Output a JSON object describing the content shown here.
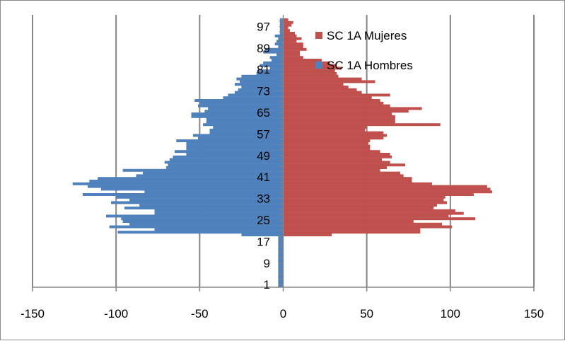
{
  "chart_data": {
    "type": "bar",
    "orientation": "horizontal",
    "layout": "population-pyramid",
    "x_ticks": [
      -150,
      -100,
      -50,
      0,
      50,
      100,
      150
    ],
    "xlim": [
      -150,
      150
    ],
    "ylim": [
      0,
      100
    ],
    "y_tick_labels": [
      "1",
      "9",
      "17",
      "25",
      "33",
      "41",
      "49",
      "57",
      "65",
      "73",
      "81",
      "89",
      "97"
    ],
    "grid": {
      "vertical": true,
      "horizontal": false
    },
    "legend_position": "top-right",
    "series": [
      {
        "name": "SC 1A Mujeres",
        "color": "#c0504d",
        "ages": [
          0,
          1,
          2,
          3,
          4,
          5,
          6,
          7,
          8,
          9,
          10,
          11,
          12,
          13,
          14,
          15,
          16,
          17,
          18,
          19,
          20,
          21,
          22,
          23,
          24,
          25,
          26,
          27,
          28,
          29,
          30,
          31,
          32,
          33,
          34,
          35,
          36,
          37,
          38,
          39,
          40,
          41,
          42,
          43,
          44,
          45,
          46,
          47,
          48,
          49,
          50,
          51,
          52,
          53,
          54,
          55,
          56,
          57,
          58,
          59,
          60,
          61,
          62,
          63,
          64,
          65,
          66,
          67,
          68,
          69,
          70,
          71,
          72,
          73,
          74,
          75,
          76,
          77,
          78,
          79,
          80,
          81,
          82,
          83,
          84,
          85,
          86,
          87,
          88,
          89,
          90,
          91,
          92,
          93,
          94,
          95,
          96,
          97,
          98,
          99
        ],
        "values": [
          0,
          0,
          0,
          0,
          0,
          0,
          0,
          0,
          0,
          0,
          0,
          0,
          0,
          0,
          0,
          0,
          0,
          0,
          0,
          29,
          82,
          82,
          101,
          95,
          78,
          115,
          99,
          108,
          103,
          90,
          92,
          98,
          96,
          97,
          114,
          125,
          124,
          122,
          89,
          77,
          77,
          72,
          70,
          58,
          62,
          73,
          64,
          59,
          65,
          64,
          58,
          52,
          52,
          51,
          52,
          60,
          62,
          60,
          49,
          50,
          94,
          67,
          67,
          67,
          65,
          75,
          83,
          64,
          60,
          58,
          53,
          64,
          47,
          44,
          39,
          36,
          55,
          47,
          33,
          32,
          31,
          35,
          32,
          28,
          23,
          12,
          10,
          10,
          14,
          12,
          12,
          8,
          11,
          8,
          7,
          4,
          3,
          5,
          6,
          3
        ]
      },
      {
        "name": "SC 1A Hombres",
        "color": "#4f81bd",
        "ages": [
          0,
          1,
          2,
          3,
          4,
          5,
          6,
          7,
          8,
          9,
          10,
          11,
          12,
          13,
          14,
          15,
          16,
          17,
          18,
          19,
          20,
          21,
          22,
          23,
          24,
          25,
          26,
          27,
          28,
          29,
          30,
          31,
          32,
          33,
          34,
          35,
          36,
          37,
          38,
          39,
          40,
          41,
          42,
          43,
          44,
          45,
          46,
          47,
          48,
          49,
          50,
          51,
          52,
          53,
          54,
          55,
          56,
          57,
          58,
          59,
          60,
          61,
          62,
          63,
          64,
          65,
          66,
          67,
          68,
          69,
          70,
          71,
          72,
          73,
          74,
          75,
          76,
          77,
          78,
          79,
          80,
          81,
          82,
          83,
          84,
          85,
          86,
          87,
          88,
          89,
          90,
          91,
          92,
          93,
          94,
          95,
          96,
          97,
          98,
          99
        ],
        "values": [
          3,
          3,
          3,
          3,
          3,
          3,
          3,
          3,
          3,
          3,
          3,
          3,
          3,
          3,
          3,
          3,
          3,
          3,
          3,
          25,
          99,
          77,
          104,
          92,
          96,
          97,
          106,
          77,
          77,
          95,
          86,
          103,
          92,
          100,
          120,
          83,
          109,
          117,
          126,
          116,
          111,
          88,
          84,
          96,
          70,
          69,
          71,
          68,
          66,
          58,
          65,
          58,
          58,
          58,
          64,
          51,
          54,
          44,
          44,
          42,
          48,
          46,
          46,
          55,
          55,
          47,
          45,
          51,
          50,
          53,
          36,
          33,
          29,
          27,
          25,
          29,
          26,
          28,
          25,
          16,
          15,
          8,
          14,
          12,
          7,
          8,
          4,
          12,
          11,
          3,
          5,
          4,
          3,
          5,
          2,
          2,
          2,
          2,
          2,
          2
        ]
      }
    ]
  }
}
